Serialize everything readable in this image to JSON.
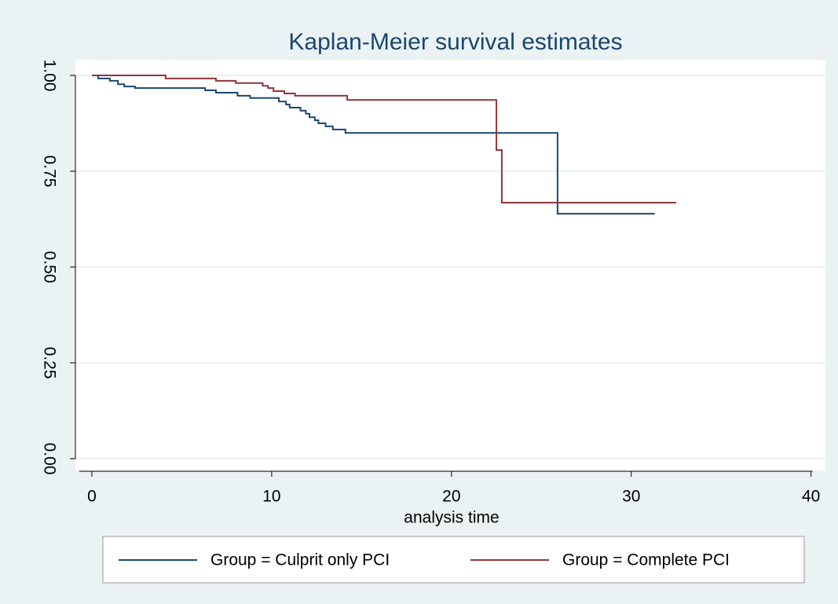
{
  "chart_data": {
    "type": "step",
    "title": "Kaplan-Meier survival estimates",
    "x_label": "analysis time",
    "xlim": [
      -0.9,
      40.8
    ],
    "xticks": [
      0,
      10,
      20,
      30,
      40
    ],
    "ylim": [
      -0.03,
      1.04
    ],
    "yticks": [
      {
        "value": 0,
        "label": "0.00"
      },
      0.25,
      {
        "value": 0.5,
        "label": "0.50"
      },
      0.75,
      {
        "value": 1,
        "label": "1.00"
      }
    ],
    "grid": true,
    "series": [
      {
        "name": "Group = Culprit only PCI",
        "color": "#1a476f",
        "x": [
          0,
          0.35,
          1.0,
          1.45,
          1.8,
          2.4,
          6.3,
          6.9,
          8.1,
          8.8,
          10.4,
          10.8,
          11.0,
          11.6,
          11.9,
          12.1,
          12.4,
          12.6,
          13.0,
          13.4,
          14.1,
          25.9,
          31.3
        ],
        "values": [
          1.0,
          0.992,
          0.986,
          0.977,
          0.971,
          0.967,
          0.961,
          0.955,
          0.947,
          0.941,
          0.932,
          0.924,
          0.916,
          0.908,
          0.9,
          0.891,
          0.883,
          0.875,
          0.867,
          0.859,
          0.85,
          0.639,
          0.639
        ]
      },
      {
        "name": "Group = Complete PCI",
        "color": "#90353b",
        "x": [
          0,
          4.1,
          6.9,
          8.0,
          9.5,
          9.8,
          10.1,
          10.7,
          11.3,
          14.2,
          22.5,
          22.8,
          32.5
        ],
        "values": [
          1.0,
          0.992,
          0.986,
          0.98,
          0.973,
          0.967,
          0.959,
          0.953,
          0.947,
          0.936,
          0.805,
          0.668,
          0.668
        ]
      }
    ]
  }
}
